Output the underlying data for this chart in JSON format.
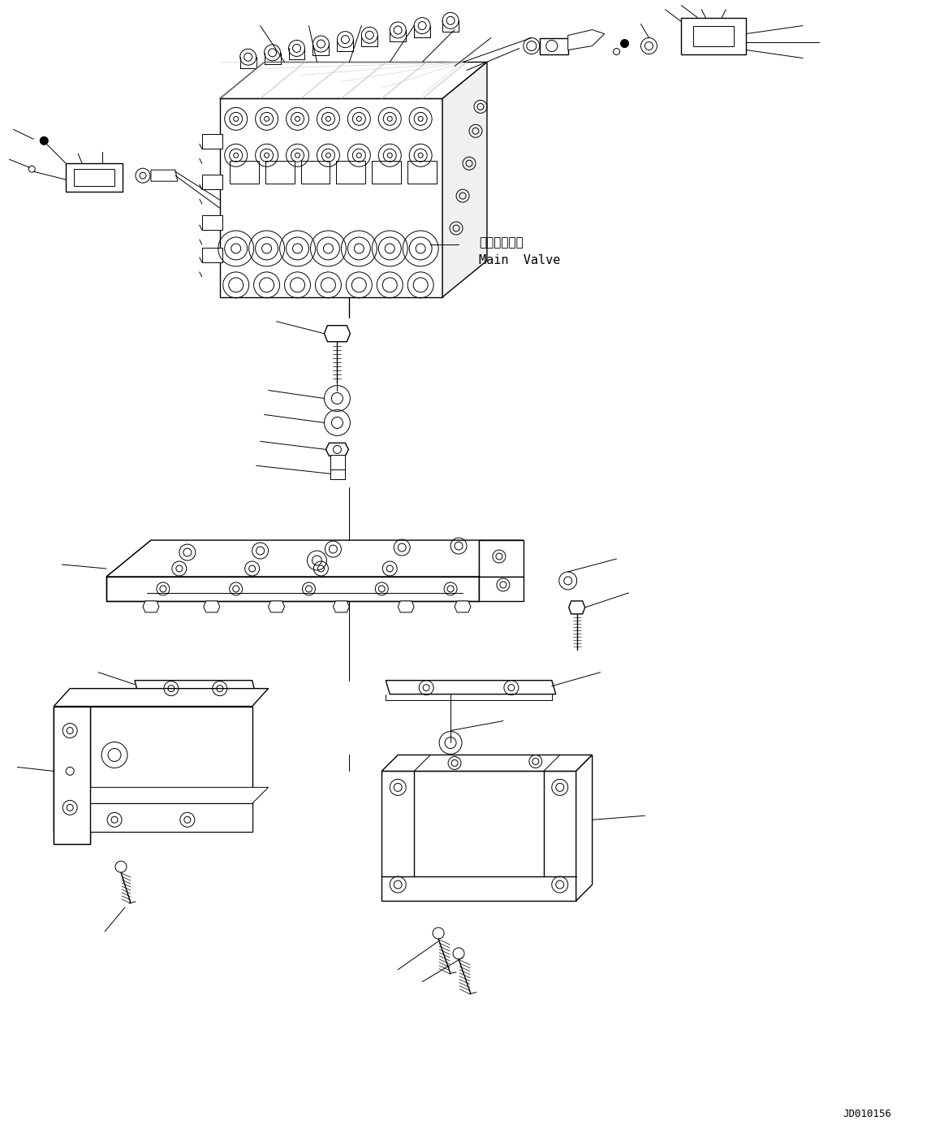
{
  "bg_color": "#ffffff",
  "line_color": "#000000",
  "fig_width": 11.63,
  "fig_height": 14.06,
  "dpi": 100,
  "watermark": "JD010156",
  "label_main_valve_jp": "メインバルブ",
  "label_main_valve_en": "Main  Valve"
}
